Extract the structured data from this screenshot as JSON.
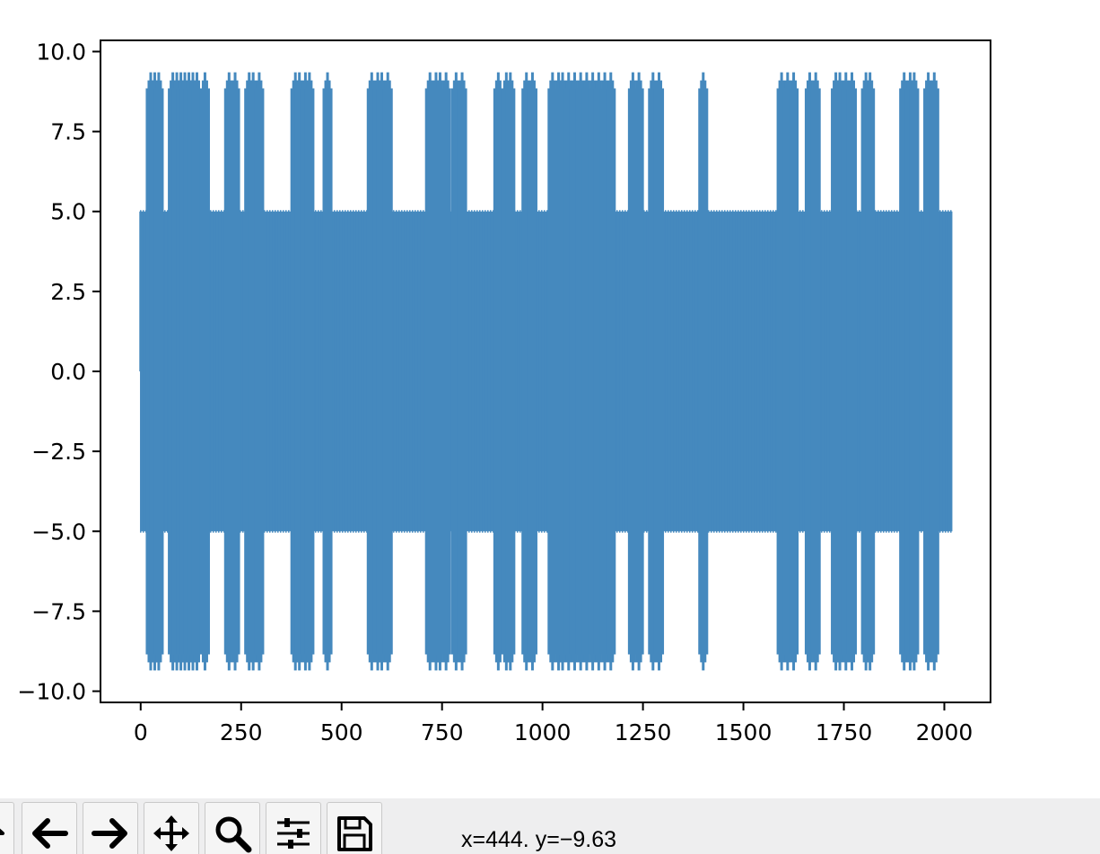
{
  "chart_data": {
    "type": "line",
    "title": "",
    "xlabel": "",
    "ylabel": "",
    "xlim": [
      -100,
      2115
    ],
    "ylim": [
      -10.35,
      10.35
    ],
    "xticks": [
      0,
      250,
      500,
      750,
      1000,
      1250,
      1500,
      1750,
      2000
    ],
    "xtick_labels": [
      "0",
      "250",
      "500",
      "750",
      "1000",
      "1250",
      "1500",
      "1750",
      "2000"
    ],
    "yticks": [
      10.0,
      7.5,
      5.0,
      2.5,
      0.0,
      -2.5,
      -5.0,
      -7.5,
      -10.0
    ],
    "ytick_labels": [
      "10.0",
      "7.5",
      "5.0",
      "2.5",
      "0.0",
      "−2.5",
      "−5.0",
      "−7.5",
      "−10.0"
    ],
    "grid": false,
    "legend": "none",
    "series": [
      {
        "color": "#4589be",
        "x_range": [
          0,
          2020
        ],
        "base_amplitude": 5.0,
        "peak_amplitude": 9.35,
        "spike_x": [
          25,
          35,
          45,
          80,
          90,
          100,
          110,
          120,
          130,
          140,
          160,
          220,
          235,
          270,
          280,
          295,
          385,
          395,
          410,
          420,
          465,
          575,
          590,
          600,
          615,
          720,
          735,
          745,
          760,
          785,
          800,
          890,
          910,
          920,
          960,
          975,
          1025,
          1040,
          1050,
          1065,
          1080,
          1095,
          1110,
          1125,
          1140,
          1155,
          1170,
          1225,
          1240,
          1275,
          1290,
          1400,
          1595,
          1610,
          1625,
          1665,
          1680,
          1730,
          1740,
          1755,
          1770,
          1805,
          1815,
          1900,
          1915,
          1925,
          1960,
          1975
        ]
      }
    ]
  },
  "toolbar": {
    "buttons": [
      {
        "name": "home-icon"
      },
      {
        "name": "back-arrow-icon"
      },
      {
        "name": "forward-arrow-icon"
      },
      {
        "name": "pan-icon"
      },
      {
        "name": "zoom-icon"
      },
      {
        "name": "configure-subplots-icon"
      },
      {
        "name": "save-icon"
      }
    ],
    "coordinates": "x=444. y=−9.63"
  }
}
